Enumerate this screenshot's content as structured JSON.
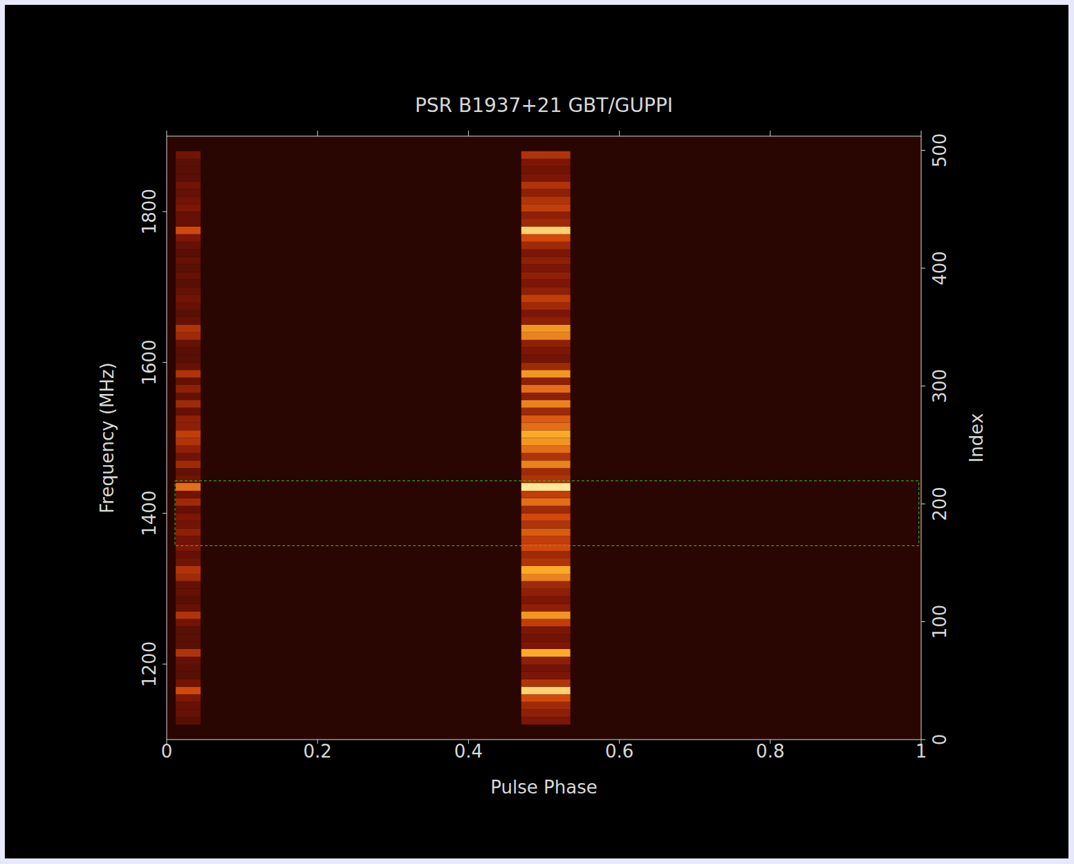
{
  "chart_data": {
    "type": "heatmap",
    "title": "PSR B1937+21 GBT/GUPPI",
    "x_label": "Pulse Phase",
    "y_label": "Frequency (MHz)",
    "y2_label": "Index",
    "xlim": [
      0,
      1
    ],
    "xticks": [
      0,
      0.2,
      0.4,
      0.6,
      0.8,
      1
    ],
    "ylim": [
      1100,
      1900
    ],
    "yticks": [
      1200,
      1400,
      1600,
      1800
    ],
    "y2lim": [
      0,
      512
    ],
    "y2ticks": [
      0,
      100,
      200,
      300,
      400,
      500
    ],
    "zlim": [
      0,
      1
    ],
    "y_bins": [
      1120,
      1130,
      1140,
      1150,
      1160,
      1170,
      1180,
      1190,
      1200,
      1210,
      1220,
      1230,
      1240,
      1250,
      1260,
      1270,
      1280,
      1290,
      1300,
      1310,
      1320,
      1330,
      1340,
      1350,
      1360,
      1370,
      1380,
      1390,
      1400,
      1410,
      1420,
      1430,
      1440,
      1450,
      1460,
      1470,
      1480,
      1490,
      1500,
      1510,
      1520,
      1530,
      1540,
      1550,
      1560,
      1570,
      1580,
      1590,
      1600,
      1610,
      1620,
      1630,
      1640,
      1650,
      1660,
      1670,
      1680,
      1690,
      1700,
      1710,
      1720,
      1730,
      1740,
      1750,
      1760,
      1770,
      1780,
      1790,
      1800,
      1810,
      1820,
      1830,
      1840,
      1850,
      1860,
      1870,
      1880
    ],
    "cells": [
      {
        "x_bins": [
          0.012,
          0.045
        ],
        "values": [
          0.2,
          0.25,
          0.25,
          0.35,
          0.6,
          0.3,
          0.2,
          0.2,
          0.25,
          0.5,
          0.2,
          0.2,
          0.2,
          0.3,
          0.5,
          0.25,
          0.2,
          0.25,
          0.25,
          0.45,
          0.5,
          0.3,
          0.25,
          0.35,
          0.3,
          0.4,
          0.3,
          0.35,
          0.25,
          0.45,
          0.3,
          0.7,
          0.3,
          0.25,
          0.45,
          0.3,
          0.4,
          0.5,
          0.55,
          0.4,
          0.4,
          0.25,
          0.45,
          0.25,
          0.4,
          0.25,
          0.5,
          0.25,
          0.2,
          0.2,
          0.25,
          0.45,
          0.5,
          0.25,
          0.2,
          0.25,
          0.3,
          0.25,
          0.2,
          0.25,
          0.2,
          0.25,
          0.2,
          0.25,
          0.35,
          0.6,
          0.25,
          0.25,
          0.35,
          0.3,
          0.25,
          0.3,
          0.2,
          0.2,
          0.2,
          0.3
        ]
      },
      {
        "x_bins": [
          0.47,
          0.535
        ],
        "values": [
          0.35,
          0.4,
          0.45,
          0.6,
          0.95,
          0.5,
          0.35,
          0.3,
          0.4,
          0.85,
          0.35,
          0.3,
          0.35,
          0.55,
          0.8,
          0.4,
          0.35,
          0.4,
          0.45,
          0.75,
          0.85,
          0.5,
          0.45,
          0.6,
          0.55,
          0.65,
          0.5,
          0.6,
          0.45,
          0.7,
          0.55,
          1.0,
          0.5,
          0.45,
          0.75,
          0.5,
          0.7,
          0.8,
          0.85,
          0.7,
          0.65,
          0.45,
          0.75,
          0.4,
          0.7,
          0.4,
          0.8,
          0.45,
          0.3,
          0.35,
          0.4,
          0.75,
          0.8,
          0.4,
          0.35,
          0.45,
          0.55,
          0.4,
          0.35,
          0.4,
          0.35,
          0.4,
          0.35,
          0.45,
          0.6,
          0.95,
          0.45,
          0.4,
          0.55,
          0.5,
          0.4,
          0.5,
          0.35,
          0.3,
          0.35,
          0.5
        ]
      }
    ],
    "box": {
      "x": [
        0.011,
        0.997
      ],
      "y": [
        1357,
        1443
      ],
      "color": "#22cc22",
      "line_style": "dashed"
    }
  }
}
